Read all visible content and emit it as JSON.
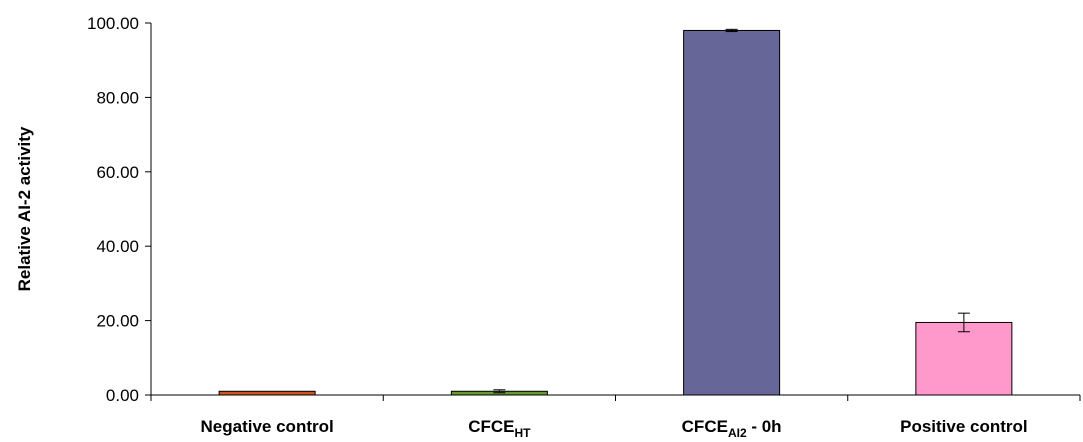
{
  "chart_data": {
    "type": "bar",
    "title": "",
    "xlabel": "",
    "ylabel": "Relative AI-2 activity",
    "ylim": [
      0,
      100
    ],
    "yticks": [
      "0.00",
      "20.00",
      "40.00",
      "60.00",
      "80.00",
      "100.00"
    ],
    "grid": false,
    "legend": "none",
    "categories": [
      {
        "base": "Negative control",
        "sub": "",
        "suffix": ""
      },
      {
        "base": "CFCE",
        "sub": "HT",
        "suffix": ""
      },
      {
        "base": "CFCE",
        "sub": "AI2",
        "suffix": " - 0h"
      },
      {
        "base": "Positive control",
        "sub": "",
        "suffix": ""
      }
    ],
    "values": [
      1.0,
      1.0,
      98.0,
      19.5
    ],
    "errors": [
      0,
      0.4,
      0.3,
      2.5
    ],
    "colors": [
      "#cc5522",
      "#669933",
      "#666699",
      "#ff99cc"
    ]
  }
}
